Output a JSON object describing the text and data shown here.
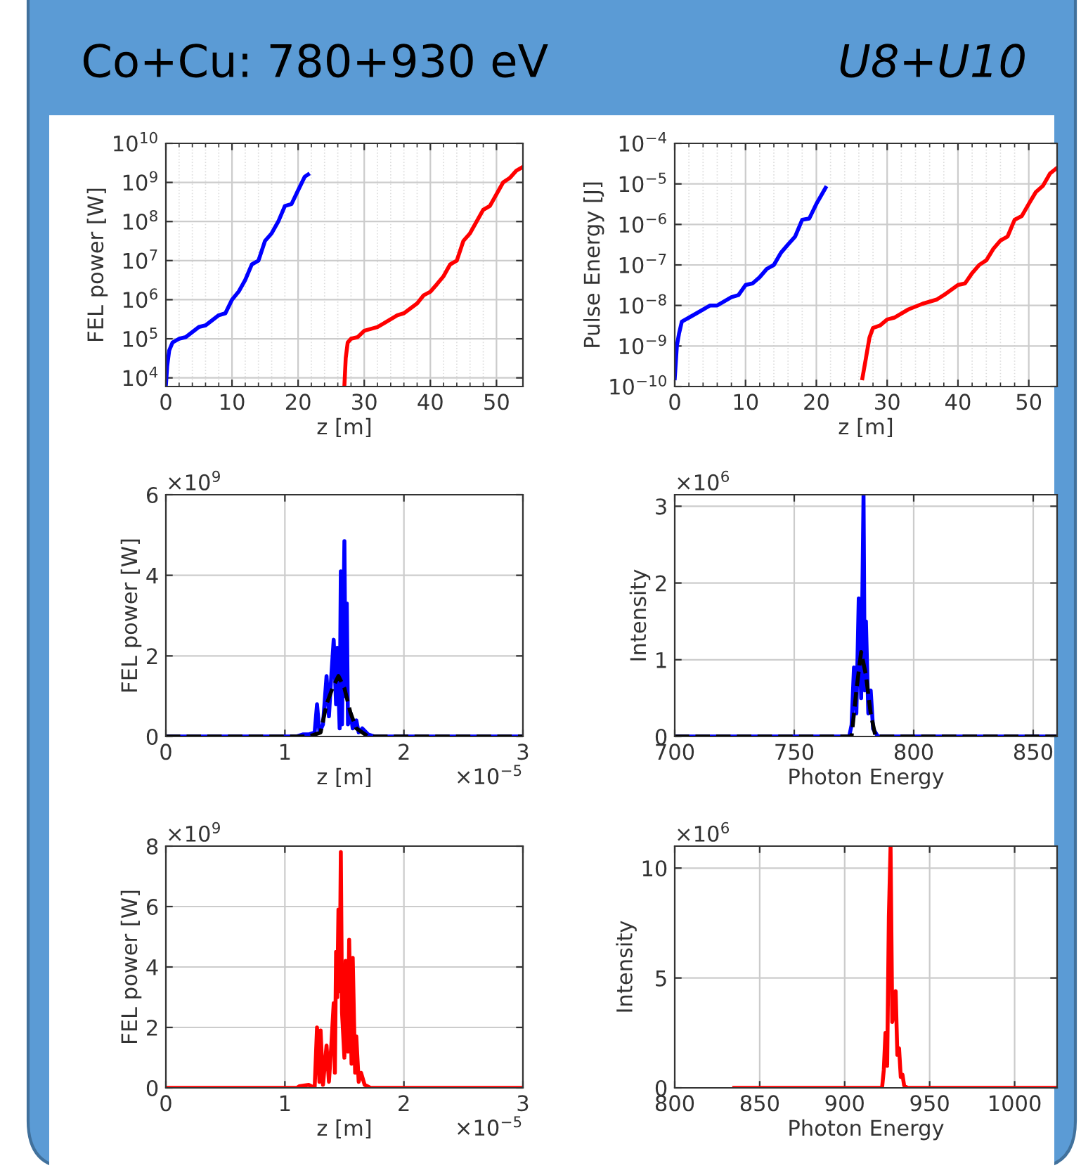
{
  "chart_data": [
    {
      "type": "line",
      "log": "y",
      "xlabel": "z [m]",
      "ylabel": "FEL power [W]",
      "grid": true,
      "annotations": [
        "Co+Cu: 780+930 eV",
        "U8+U10"
      ],
      "xlim": [
        0,
        54
      ],
      "ylim": [
        6000,
        10000000000
      ],
      "xticks": [
        0,
        10,
        20,
        30,
        40,
        50
      ],
      "yticks": [
        {
          "value": 10000,
          "label": "10$^{4}$"
        },
        {
          "value": 100000,
          "label": "10$^{5}$"
        },
        {
          "value": 1000000,
          "label": "10$^{6}$"
        },
        {
          "value": 10000000,
          "label": "10$^{7}$"
        },
        {
          "value": 100000000,
          "label": "10$^{8}$"
        },
        {
          "value": 1000000000,
          "label": "10$^{9}$"
        },
        {
          "value": 10000000000,
          "label": "10$^{10}$"
        }
      ],
      "series": [
        {
          "color": "#0000ff",
          "x": [
            0,
            0.2,
            0.5,
            1,
            2,
            3,
            5,
            6,
            8,
            9,
            10,
            11,
            12,
            13,
            14,
            15,
            16,
            17,
            18,
            19,
            20,
            21,
            21.5
          ],
          "values": [
            6300,
            20000,
            50000,
            80000,
            100000,
            110000,
            200000,
            220000,
            400000,
            450000,
            1000000,
            1600000,
            3200000,
            8000000,
            10000000,
            32000000,
            50000000,
            100000000,
            250000000,
            280000000,
            630000000,
            1400000000,
            1600000000
          ]
        },
        {
          "color": "#ff0000",
          "x": [
            27,
            27.2,
            27.5,
            28,
            29,
            30,
            32,
            33,
            35,
            36,
            38,
            39,
            40,
            41,
            42,
            43,
            44,
            45,
            46,
            47,
            48,
            49,
            50,
            51,
            52,
            53,
            54
          ],
          "values": [
            6300,
            32000,
            80000,
            100000,
            110000,
            160000,
            200000,
            250000,
            400000,
            450000,
            800000,
            1300000,
            1600000,
            2500000,
            4000000,
            8000000,
            10000000,
            32000000,
            50000000,
            100000000,
            200000000,
            250000000,
            500000000,
            1000000000,
            1300000000,
            2000000000,
            2500000000
          ]
        }
      ]
    },
    {
      "type": "line",
      "log": "y",
      "xlabel": "z [m]",
      "ylabel": "Pulse Energy [J]",
      "grid": true,
      "xlim": [
        0,
        54
      ],
      "ylim": [
        1e-10,
        0.0001
      ],
      "xticks": [
        0,
        10,
        20,
        30,
        40,
        50
      ],
      "yticks": [
        {
          "value": 1e-10,
          "label": "10$^{−10}$"
        },
        {
          "value": 1e-09,
          "label": "10$^{−9}$"
        },
        {
          "value": 1e-08,
          "label": "10$^{−8}$"
        },
        {
          "value": 1e-07,
          "label": "10$^{−7}$"
        },
        {
          "value": 1e-06,
          "label": "10$^{−6}$"
        },
        {
          "value": 1e-05,
          "label": "10$^{−5}$"
        },
        {
          "value": 0.0001,
          "label": "10$^{−4}$"
        }
      ],
      "series": [
        {
          "color": "#0000ff",
          "x": [
            0,
            0.3,
            0.6,
            1,
            2,
            3,
            5,
            6,
            8,
            9,
            10,
            11,
            12,
            13,
            14,
            15,
            16,
            17,
            18,
            19,
            20,
            21.3
          ],
          "values": [
            1.6e-10,
            1e-09,
            2e-09,
            4e-09,
            5e-09,
            6.3e-09,
            1e-08,
            1e-08,
            1.6e-08,
            1.8e-08,
            3.2e-08,
            3.5e-08,
            5e-08,
            8e-08,
            1e-07,
            2e-07,
            3.2e-07,
            5e-07,
            1.3e-06,
            1.4e-06,
            3.2e-06,
            8e-06
          ]
        },
        {
          "color": "#ff0000",
          "x": [
            26.5,
            27,
            27.5,
            28,
            29,
            30,
            31,
            33,
            35,
            37,
            38,
            40,
            41,
            42,
            43,
            44,
            45,
            46,
            47,
            48,
            49,
            50,
            51,
            52,
            53,
            54
          ],
          "values": [
            1.6e-10,
            5e-10,
            1.6e-09,
            2.8e-09,
            3.2e-09,
            4.5e-09,
            5e-09,
            8e-09,
            1.1e-08,
            1.4e-08,
            1.8e-08,
            3.2e-08,
            3.5e-08,
            6.3e-08,
            1e-07,
            1.3e-07,
            2.5e-07,
            4e-07,
            5e-07,
            1.3e-06,
            1.6e-06,
            3.2e-06,
            6.3e-06,
            9e-06,
            1.8e-05,
            2.5e-05
          ]
        }
      ]
    },
    {
      "type": "line",
      "xlabel": "z [m]",
      "ylabel": "FEL power [W]",
      "grid": true,
      "annotations": [
        "×10$^{9}$",
        "×10$^{−5}$"
      ],
      "xlim": [
        0,
        3
      ],
      "ylim": [
        0,
        6
      ],
      "xticks": [
        0,
        1,
        2,
        3
      ],
      "yticks": [
        0,
        2,
        4,
        6
      ],
      "series": [
        {
          "color": "#0000ff",
          "x": [
            0,
            1.1,
            1.15,
            1.2,
            1.25,
            1.27,
            1.29,
            1.32,
            1.35,
            1.37,
            1.39,
            1.41,
            1.43,
            1.44,
            1.46,
            1.47,
            1.48,
            1.5,
            1.51,
            1.52,
            1.53,
            1.55,
            1.57,
            1.6,
            1.62,
            1.65,
            1.7,
            1.75,
            3
          ],
          "values": [
            0,
            0,
            0.05,
            0.05,
            0.1,
            0.8,
            0.1,
            0.3,
            1.5,
            0.5,
            1.5,
            2.4,
            0.8,
            2.2,
            0.2,
            4.1,
            0.3,
            4.85,
            1.0,
            3.3,
            0.3,
            0.6,
            0.2,
            0.4,
            0.1,
            0.2,
            0.05,
            0,
            0
          ]
        },
        {
          "color": "#000000",
          "line_style": "dashed",
          "x": [
            0,
            1.2,
            1.3,
            1.35,
            1.4,
            1.45,
            1.5,
            1.55,
            1.6,
            1.7,
            3
          ],
          "values": [
            0,
            0,
            0.1,
            0.8,
            1.2,
            1.5,
            1.2,
            0.6,
            0.2,
            0,
            0
          ]
        }
      ]
    },
    {
      "type": "line",
      "xlabel": "Photon Energy",
      "ylabel": "Intensity",
      "grid": true,
      "annotations": [
        "×10$^{6}$"
      ],
      "xlim": [
        700,
        860
      ],
      "ylim": [
        0,
        3.15
      ],
      "xticks": [
        700,
        750,
        800,
        850
      ],
      "yticks": [
        0,
        1,
        2,
        3
      ],
      "series": [
        {
          "color": "#0000ff",
          "x": [
            700,
            773,
            774,
            775,
            776,
            777,
            778,
            779,
            779.5,
            780,
            781,
            782,
            783,
            785,
            860
          ],
          "values": [
            0,
            0,
            0.15,
            0.9,
            0.3,
            1.8,
            0.5,
            3.15,
            0.6,
            1.5,
            0.3,
            0.6,
            0.1,
            0,
            0
          ]
        },
        {
          "color": "#000000",
          "line_style": "dashed",
          "x": [
            700,
            774,
            776,
            778,
            780,
            782,
            784,
            860
          ],
          "values": [
            0,
            0,
            0.6,
            1.1,
            0.8,
            0.3,
            0,
            0
          ]
        }
      ]
    },
    {
      "type": "line",
      "xlabel": "z [m]",
      "ylabel": "FEL power [W]",
      "grid": true,
      "annotations": [
        "×10$^{9}$",
        "×10$^{−5}$"
      ],
      "xlim": [
        0,
        3
      ],
      "ylim": [
        0,
        8
      ],
      "xticks": [
        0,
        1,
        2,
        3
      ],
      "yticks": [
        0,
        2,
        4,
        6,
        8
      ],
      "series": [
        {
          "color": "#ff0000",
          "x": [
            0,
            1.1,
            1.12,
            1.2,
            1.25,
            1.27,
            1.29,
            1.3,
            1.32,
            1.35,
            1.37,
            1.39,
            1.41,
            1.42,
            1.43,
            1.44,
            1.45,
            1.46,
            1.47,
            1.48,
            1.5,
            1.51,
            1.53,
            1.54,
            1.56,
            1.57,
            1.59,
            1.6,
            1.62,
            1.64,
            1.67,
            1.72,
            3
          ],
          "values": [
            0,
            0,
            0.05,
            0.1,
            0,
            2.0,
            0.2,
            1.9,
            0.1,
            1.4,
            0.2,
            1.4,
            2.8,
            0.5,
            4.5,
            3.0,
            5.9,
            3.2,
            7.8,
            2.5,
            1.0,
            4.2,
            1.2,
            4.9,
            0.8,
            4.3,
            0.5,
            1.7,
            0.2,
            0.5,
            0.1,
            0,
            0
          ]
        }
      ]
    },
    {
      "type": "line",
      "xlabel": "Photon Energy",
      "ylabel": "Intensity",
      "grid": true,
      "annotations": [
        "×10$^{6}$"
      ],
      "xlim": [
        800,
        1025
      ],
      "ylim": [
        0,
        11
      ],
      "xticks": [
        800,
        850,
        900,
        950,
        1000
      ],
      "yticks": [
        0,
        5,
        10
      ],
      "series": [
        {
          "color": "#ff0000",
          "x": [
            835,
            922,
            923,
            924,
            925,
            926,
            927,
            928,
            929,
            930,
            931,
            932,
            933,
            934,
            935,
            937,
            1025
          ],
          "values": [
            0,
            0,
            0.8,
            2.5,
            1.0,
            7.8,
            11,
            3.0,
            3.5,
            4.4,
            1.5,
            1.8,
            0.5,
            0.6,
            0.1,
            0,
            0
          ]
        }
      ]
    }
  ]
}
